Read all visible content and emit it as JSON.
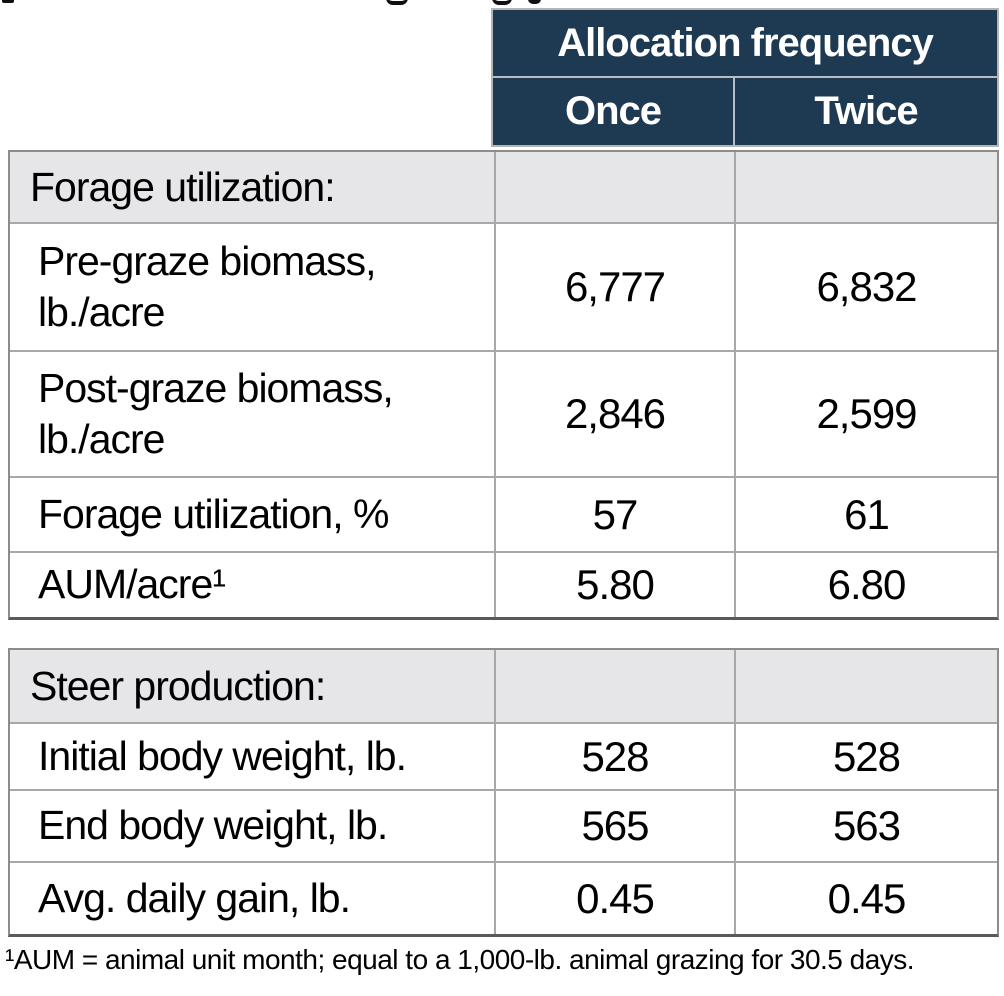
{
  "header": {
    "group_label": "Allocation frequency",
    "columns": {
      "once": "Once",
      "twice": "Twice"
    }
  },
  "tables": [
    {
      "section": "Forage utilization:",
      "rows": [
        {
          "label": "Pre-graze biomass, lb./acre",
          "once": "6,777",
          "twice": "6,832"
        },
        {
          "label": "Post-graze biomass, lb./acre",
          "once": "2,846",
          "twice": "2,599"
        },
        {
          "label": "Forage utilization, %",
          "once": "57",
          "twice": "61"
        },
        {
          "label": "AUM/acre¹",
          "once": "5.80",
          "twice": "6.80"
        }
      ]
    },
    {
      "section": "Steer production:",
      "rows": [
        {
          "label": "Initial body weight, lb.",
          "once": "528",
          "twice": "528"
        },
        {
          "label": "End body weight, lb.",
          "once": "565",
          "twice": "563"
        },
        {
          "label": "Avg. daily gain, lb.",
          "once": "0.45",
          "twice": "0.45"
        }
      ]
    }
  ],
  "footnote": "¹AUM = animal unit month; equal to a 1,000-lb. animal grazing for 30.5 days.",
  "colors": {
    "header_bg": "#1e3a53",
    "header_text": "#ffffff",
    "section_row_bg": "#e6e6e8",
    "grid_line": "#a8a8a8",
    "text": "#000000"
  }
}
